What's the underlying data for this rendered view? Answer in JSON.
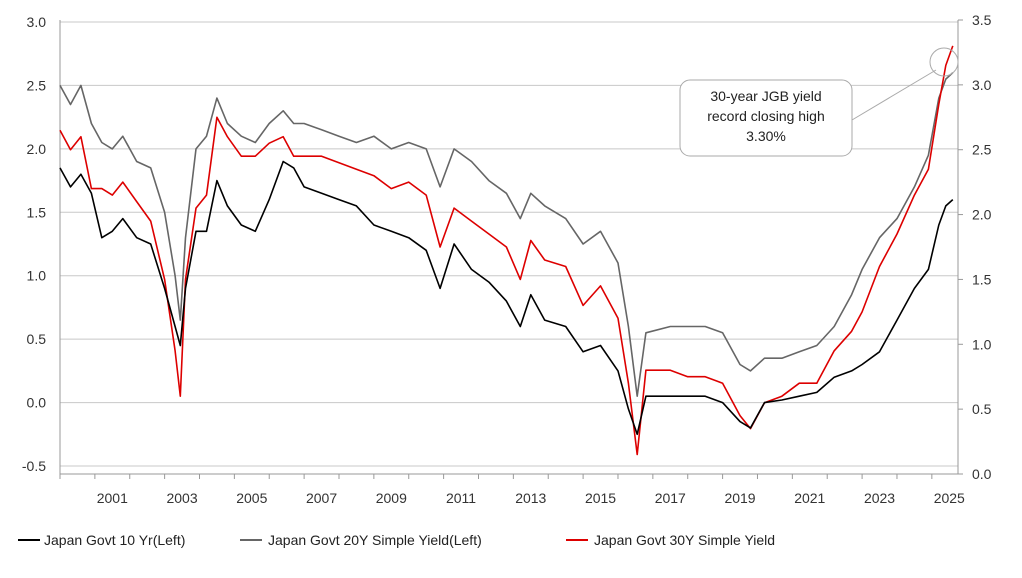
{
  "chart_data": {
    "type": "line",
    "title": "",
    "x_ticks": [
      "2001",
      "2003",
      "2005",
      "2007",
      "2009",
      "2011",
      "2013",
      "2015",
      "2017",
      "2019",
      "2021",
      "2023",
      "2025"
    ],
    "xlim": [
      2000.0,
      2025.75
    ],
    "y_left": {
      "ticks": [
        "3.0",
        "2.5",
        "2.0",
        "1.5",
        "1.0",
        "0.5",
        "0.0",
        "-0.5"
      ],
      "lim": [
        -0.55,
        3.0
      ]
    },
    "y_right": {
      "ticks": [
        "3.5",
        "3.0",
        "2.5",
        "2.0",
        "1.5",
        "1.0",
        "0.5",
        "0.0"
      ],
      "lim": [
        0.0,
        3.5
      ]
    },
    "grid": "horizontal",
    "legend_placement": "bottom",
    "series": [
      {
        "name": "Japan Govt 10 Yr(Left)",
        "axis": "left",
        "color": "#000000",
        "x": [
          2000.0,
          2000.3,
          2000.6,
          2000.9,
          2001.2,
          2001.5,
          2001.8,
          2002.2,
          2002.6,
          2003.0,
          2003.3,
          2003.45,
          2003.6,
          2003.9,
          2004.2,
          2004.5,
          2004.8,
          2005.2,
          2005.6,
          2006.0,
          2006.4,
          2006.7,
          2007.0,
          2007.5,
          2008.0,
          2008.5,
          2009.0,
          2009.5,
          2010.0,
          2010.5,
          2010.9,
          2011.3,
          2011.8,
          2012.3,
          2012.8,
          2013.2,
          2013.5,
          2013.9,
          2014.5,
          2015.0,
          2015.5,
          2016.0,
          2016.3,
          2016.55,
          2016.8,
          2017.5,
          2018.0,
          2018.5,
          2019.0,
          2019.5,
          2019.8,
          2020.2,
          2020.7,
          2021.2,
          2021.7,
          2022.2,
          2022.7,
          2023.0,
          2023.5,
          2024.0,
          2024.5,
          2024.9,
          2025.2,
          2025.4,
          2025.6
        ],
        "y": [
          1.85,
          1.7,
          1.8,
          1.65,
          1.3,
          1.35,
          1.45,
          1.3,
          1.25,
          0.9,
          0.6,
          0.45,
          0.9,
          1.35,
          1.35,
          1.75,
          1.55,
          1.4,
          1.35,
          1.6,
          1.9,
          1.85,
          1.7,
          1.65,
          1.6,
          1.55,
          1.4,
          1.35,
          1.3,
          1.2,
          0.9,
          1.25,
          1.05,
          0.95,
          0.8,
          0.6,
          0.85,
          0.65,
          0.6,
          0.4,
          0.45,
          0.25,
          -0.05,
          -0.25,
          0.05,
          0.05,
          0.05,
          0.05,
          0.0,
          -0.15,
          -0.2,
          0.0,
          0.02,
          0.05,
          0.08,
          0.2,
          0.25,
          0.3,
          0.4,
          0.65,
          0.9,
          1.05,
          1.4,
          1.55,
          1.6
        ]
      },
      {
        "name": "Japan Govt 20Y Simple Yield(Left)",
        "axis": "left",
        "color": "#666666",
        "x": [
          2000.0,
          2000.3,
          2000.6,
          2000.9,
          2001.2,
          2001.5,
          2001.8,
          2002.2,
          2002.6,
          2003.0,
          2003.3,
          2003.45,
          2003.6,
          2003.9,
          2004.2,
          2004.5,
          2004.8,
          2005.2,
          2005.6,
          2006.0,
          2006.4,
          2006.7,
          2007.0,
          2007.5,
          2008.0,
          2008.5,
          2009.0,
          2009.5,
          2010.0,
          2010.5,
          2010.9,
          2011.3,
          2011.8,
          2012.3,
          2012.8,
          2013.2,
          2013.5,
          2013.9,
          2014.5,
          2015.0,
          2015.5,
          2016.0,
          2016.3,
          2016.55,
          2016.8,
          2017.5,
          2018.0,
          2018.5,
          2019.0,
          2019.5,
          2019.8,
          2020.2,
          2020.7,
          2021.2,
          2021.7,
          2022.2,
          2022.7,
          2023.0,
          2023.5,
          2024.0,
          2024.5,
          2024.9,
          2025.2,
          2025.4,
          2025.6
        ],
        "y": [
          2.5,
          2.35,
          2.5,
          2.2,
          2.05,
          2.0,
          2.1,
          1.9,
          1.85,
          1.5,
          1.0,
          0.65,
          1.3,
          2.0,
          2.1,
          2.4,
          2.2,
          2.1,
          2.05,
          2.2,
          2.3,
          2.2,
          2.2,
          2.15,
          2.1,
          2.05,
          2.1,
          2.0,
          2.05,
          2.0,
          1.7,
          2.0,
          1.9,
          1.75,
          1.65,
          1.45,
          1.65,
          1.55,
          1.45,
          1.25,
          1.35,
          1.1,
          0.6,
          0.05,
          0.55,
          0.6,
          0.6,
          0.6,
          0.55,
          0.3,
          0.25,
          0.35,
          0.35,
          0.4,
          0.45,
          0.6,
          0.85,
          1.05,
          1.3,
          1.45,
          1.7,
          1.95,
          2.4,
          2.55,
          2.6
        ]
      },
      {
        "name": "Japan Govt 30Y Simple Yield",
        "axis": "right",
        "color": "#dd0000",
        "x": [
          2000.0,
          2000.3,
          2000.6,
          2000.9,
          2001.2,
          2001.5,
          2001.8,
          2002.2,
          2002.6,
          2003.0,
          2003.3,
          2003.45,
          2003.6,
          2003.9,
          2004.2,
          2004.5,
          2004.8,
          2005.2,
          2005.6,
          2006.0,
          2006.4,
          2006.7,
          2007.0,
          2007.5,
          2008.0,
          2008.5,
          2009.0,
          2009.5,
          2010.0,
          2010.5,
          2010.9,
          2011.3,
          2011.8,
          2012.3,
          2012.8,
          2013.2,
          2013.5,
          2013.9,
          2014.5,
          2015.0,
          2015.5,
          2016.0,
          2016.3,
          2016.55,
          2016.8,
          2017.5,
          2018.0,
          2018.5,
          2019.0,
          2019.5,
          2019.8,
          2020.2,
          2020.7,
          2021.2,
          2021.7,
          2022.2,
          2022.7,
          2023.0,
          2023.5,
          2024.0,
          2024.5,
          2024.9,
          2025.2,
          2025.4,
          2025.6
        ],
        "y": [
          2.65,
          2.5,
          2.6,
          2.2,
          2.2,
          2.15,
          2.25,
          2.1,
          1.95,
          1.5,
          0.95,
          0.6,
          1.5,
          2.05,
          2.15,
          2.75,
          2.6,
          2.45,
          2.45,
          2.55,
          2.6,
          2.45,
          2.45,
          2.45,
          2.4,
          2.35,
          2.3,
          2.2,
          2.25,
          2.15,
          1.75,
          2.05,
          1.95,
          1.85,
          1.75,
          1.5,
          1.8,
          1.65,
          1.6,
          1.3,
          1.45,
          1.2,
          0.7,
          0.15,
          0.8,
          0.8,
          0.75,
          0.75,
          0.7,
          0.45,
          0.35,
          0.55,
          0.6,
          0.7,
          0.7,
          0.95,
          1.1,
          1.25,
          1.6,
          1.85,
          2.15,
          2.35,
          2.85,
          3.15,
          3.3
        ]
      }
    ],
    "annotation": {
      "lines": [
        "30-year JGB yield",
        "record closing high",
        "3.30%"
      ]
    }
  }
}
